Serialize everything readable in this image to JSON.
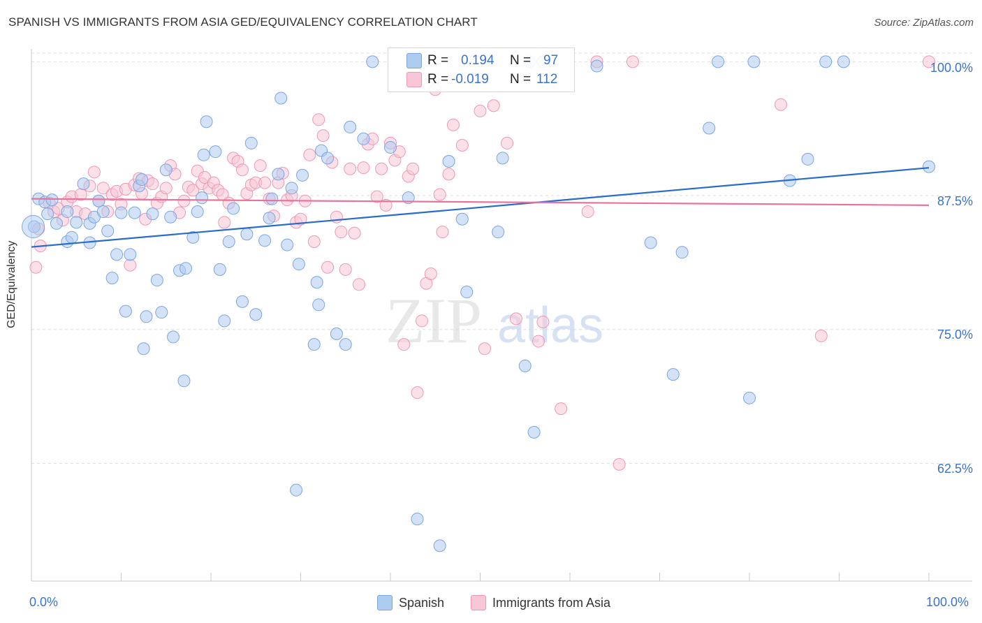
{
  "title": "SPANISH VS IMMIGRANTS FROM ASIA GED/EQUIVALENCY CORRELATION CHART",
  "source": "Source: ZipAtlas.com",
  "watermark": {
    "zip": "ZIP",
    "atlas": "atlas"
  },
  "legend": {
    "r_label": "R =",
    "n_label": "N =",
    "series1": {
      "r": "0.194",
      "n": "97"
    },
    "series2": {
      "r": "-0.019",
      "n": "112"
    }
  },
  "colors": {
    "spanish_fill": "#aecbf0",
    "spanish_stroke": "#7aa6e0",
    "spanish_line": "#2a6ccc",
    "asia_fill": "#f8c6d6",
    "asia_stroke": "#ee98b4",
    "asia_line": "#e8739b",
    "axis_text": "#3b73c8"
  },
  "chart_data": {
    "type": "scatter",
    "title": "SPANISH VS IMMIGRANTS FROM ASIA GED/EQUIVALENCY CORRELATION CHART",
    "xlabel": "",
    "ylabel": "GED/Equivalency",
    "xlim": [
      0,
      100
    ],
    "ylim": [
      51.5,
      101.2
    ],
    "x_tick_labels": [
      "0.0%",
      "100.0%"
    ],
    "y_ticks": [
      62.5,
      75.0,
      87.5,
      100.0
    ],
    "y_tick_labels": [
      "62.5%",
      "75.0%",
      "87.5%",
      "100.0%"
    ],
    "grid": "horizontal dashed",
    "legend_position": "top-center",
    "series": [
      {
        "name": "Spanish",
        "r": 0.194,
        "n": 97,
        "trend": {
          "x": [
            0,
            100
          ],
          "y": [
            82.7,
            90.1
          ]
        },
        "points": [
          [
            0.3,
            84.6
          ],
          [
            0.8,
            87.2
          ],
          [
            1.5,
            86.9
          ],
          [
            1.8,
            85.8
          ],
          [
            2.3,
            87.1
          ],
          [
            2.8,
            84.9
          ],
          [
            4.0,
            86.0
          ],
          [
            4.0,
            83.2
          ],
          [
            4.5,
            83.6
          ],
          [
            5.0,
            85.0
          ],
          [
            6.5,
            84.9
          ],
          [
            6.5,
            83.1
          ],
          [
            5.8,
            88.6
          ],
          [
            7.0,
            85.5
          ],
          [
            7.5,
            87.0
          ],
          [
            8.0,
            86.0
          ],
          [
            8.5,
            84.2
          ],
          [
            9.0,
            79.8
          ],
          [
            9.5,
            82.0
          ],
          [
            10.0,
            85.9
          ],
          [
            10.5,
            76.7
          ],
          [
            11.0,
            82.0
          ],
          [
            11.5,
            85.9
          ],
          [
            12.0,
            88.4
          ],
          [
            12.3,
            89.0
          ],
          [
            12.5,
            73.2
          ],
          [
            12.8,
            76.2
          ],
          [
            13.5,
            85.8
          ],
          [
            14.0,
            79.6
          ],
          [
            14.5,
            76.6
          ],
          [
            15.0,
            89.9
          ],
          [
            15.5,
            85.5
          ],
          [
            15.8,
            74.3
          ],
          [
            16.5,
            80.5
          ],
          [
            17.0,
            70.2
          ],
          [
            17.2,
            80.7
          ],
          [
            18.0,
            83.6
          ],
          [
            18.5,
            86.0
          ],
          [
            19.0,
            87.3
          ],
          [
            19.2,
            91.3
          ],
          [
            19.5,
            94.4
          ],
          [
            20.5,
            91.6
          ],
          [
            21.0,
            80.6
          ],
          [
            21.5,
            75.8
          ],
          [
            22.0,
            83.2
          ],
          [
            22.5,
            86.3
          ],
          [
            23.5,
            77.6
          ],
          [
            24.0,
            83.9
          ],
          [
            24.5,
            92.4
          ],
          [
            25.0,
            76.4
          ],
          [
            26.0,
            83.3
          ],
          [
            26.5,
            85.4
          ],
          [
            26.8,
            87.2
          ],
          [
            27.5,
            89.5
          ],
          [
            27.8,
            96.6
          ],
          [
            28.5,
            82.9
          ],
          [
            29.0,
            88.2
          ],
          [
            29.5,
            60.0
          ],
          [
            29.8,
            81.1
          ],
          [
            30.2,
            89.4
          ],
          [
            31.5,
            73.6
          ],
          [
            31.8,
            79.4
          ],
          [
            32.0,
            77.3
          ],
          [
            32.3,
            91.7
          ],
          [
            33.0,
            91.0
          ],
          [
            34.0,
            74.6
          ],
          [
            35.0,
            73.6
          ],
          [
            35.5,
            93.9
          ],
          [
            37.0,
            92.8
          ],
          [
            38.0,
            100.0
          ],
          [
            40.0,
            92.0
          ],
          [
            42.0,
            87.3
          ],
          [
            43.0,
            57.3
          ],
          [
            43.2,
            100.0
          ],
          [
            45.5,
            54.8
          ],
          [
            46.5,
            90.7
          ],
          [
            48.0,
            85.3
          ],
          [
            48.5,
            78.5
          ],
          [
            52.0,
            84.1
          ],
          [
            52.5,
            91.0
          ],
          [
            55.0,
            71.6
          ],
          [
            55.5,
            100.0
          ],
          [
            56.0,
            65.4
          ],
          [
            57.0,
            100.0
          ],
          [
            63.0,
            99.6
          ],
          [
            69.0,
            83.1
          ],
          [
            71.5,
            70.8
          ],
          [
            72.5,
            82.2
          ],
          [
            75.5,
            93.8
          ],
          [
            76.5,
            100.0
          ],
          [
            80.0,
            68.6
          ],
          [
            80.5,
            100.0
          ],
          [
            84.5,
            88.9
          ],
          [
            86.5,
            90.9
          ],
          [
            88.5,
            100.0
          ],
          [
            90.5,
            100.0
          ],
          [
            100.0,
            90.2
          ]
        ]
      },
      {
        "name": "Immigrants from Asia",
        "r": -0.019,
        "n": 112,
        "trend": {
          "x": [
            0,
            100
          ],
          "y": [
            87.2,
            86.6
          ]
        },
        "points": [
          [
            0.5,
            80.8
          ],
          [
            0.8,
            84.4
          ],
          [
            1.0,
            82.8
          ],
          [
            2.0,
            86.8
          ],
          [
            2.5,
            86.0
          ],
          [
            3.0,
            86.3
          ],
          [
            3.5,
            85.2
          ],
          [
            4.0,
            86.9
          ],
          [
            4.5,
            87.4
          ],
          [
            5.0,
            86.0
          ],
          [
            5.5,
            87.6
          ],
          [
            6.0,
            85.8
          ],
          [
            6.5,
            88.4
          ],
          [
            7.0,
            89.7
          ],
          [
            7.5,
            87.0
          ],
          [
            8.0,
            88.2
          ],
          [
            8.5,
            86.0
          ],
          [
            9.0,
            87.6
          ],
          [
            9.5,
            87.9
          ],
          [
            10.0,
            86.7
          ],
          [
            10.5,
            88.1
          ],
          [
            11.0,
            81.0
          ],
          [
            11.5,
            88.5
          ],
          [
            12.0,
            89.1
          ],
          [
            12.3,
            87.7
          ],
          [
            12.7,
            85.3
          ],
          [
            13.0,
            88.9
          ],
          [
            13.5,
            88.6
          ],
          [
            14.0,
            86.8
          ],
          [
            14.5,
            87.4
          ],
          [
            15.0,
            88.2
          ],
          [
            15.5,
            90.3
          ],
          [
            16.0,
            89.5
          ],
          [
            16.5,
            85.9
          ],
          [
            17.0,
            87.0
          ],
          [
            17.5,
            88.3
          ],
          [
            18.0,
            88.0
          ],
          [
            18.5,
            89.8
          ],
          [
            19.0,
            88.6
          ],
          [
            19.3,
            89.2
          ],
          [
            19.8,
            88.2
          ],
          [
            20.3,
            88.7
          ],
          [
            20.8,
            88.0
          ],
          [
            21.3,
            87.6
          ],
          [
            21.5,
            85.0
          ],
          [
            22.0,
            86.8
          ],
          [
            22.5,
            91.0
          ],
          [
            23.0,
            90.7
          ],
          [
            23.5,
            89.9
          ],
          [
            24.0,
            87.7
          ],
          [
            24.5,
            88.5
          ],
          [
            25.0,
            88.7
          ],
          [
            25.5,
            90.3
          ],
          [
            26.0,
            88.7
          ],
          [
            26.5,
            87.2
          ],
          [
            27.0,
            85.6
          ],
          [
            27.5,
            88.7
          ],
          [
            28.0,
            89.6
          ],
          [
            28.5,
            87.1
          ],
          [
            29.0,
            87.5
          ],
          [
            29.5,
            85.0
          ],
          [
            30.0,
            85.3
          ],
          [
            30.5,
            87.0
          ],
          [
            31.0,
            91.3
          ],
          [
            31.5,
            83.2
          ],
          [
            32.0,
            94.6
          ],
          [
            32.5,
            93.1
          ],
          [
            33.0,
            80.8
          ],
          [
            33.5,
            90.6
          ],
          [
            34.0,
            85.5
          ],
          [
            34.5,
            84.1
          ],
          [
            35.0,
            80.6
          ],
          [
            35.5,
            90.0
          ],
          [
            36.0,
            84.0
          ],
          [
            36.5,
            79.2
          ],
          [
            37.0,
            90.1
          ],
          [
            37.5,
            92.3
          ],
          [
            38.0,
            92.8
          ],
          [
            38.5,
            87.4
          ],
          [
            39.0,
            90.0
          ],
          [
            39.5,
            86.6
          ],
          [
            40.0,
            92.4
          ],
          [
            40.5,
            90.8
          ],
          [
            41.0,
            91.6
          ],
          [
            41.5,
            73.6
          ],
          [
            42.0,
            89.3
          ],
          [
            42.5,
            90.0
          ],
          [
            43.0,
            69.1
          ],
          [
            43.5,
            75.8
          ],
          [
            44.0,
            79.3
          ],
          [
            44.5,
            80.2
          ],
          [
            45.0,
            97.4
          ],
          [
            45.5,
            87.6
          ],
          [
            45.8,
            84.1
          ],
          [
            46.5,
            89.5
          ],
          [
            47.0,
            94.1
          ],
          [
            48.0,
            92.2
          ],
          [
            50.5,
            73.2
          ],
          [
            50.0,
            95.4
          ],
          [
            51.5,
            95.9
          ],
          [
            53.0,
            92.4
          ],
          [
            54.0,
            76.0
          ],
          [
            56.5,
            73.9
          ],
          [
            57.0,
            75.7
          ],
          [
            59.0,
            67.6
          ],
          [
            62.0,
            86.0
          ],
          [
            63.0,
            100.0
          ],
          [
            65.5,
            62.4
          ],
          [
            67.0,
            100.0
          ],
          [
            83.5,
            96.0
          ],
          [
            88.0,
            74.4
          ],
          [
            100.0,
            100.0
          ]
        ]
      }
    ]
  }
}
